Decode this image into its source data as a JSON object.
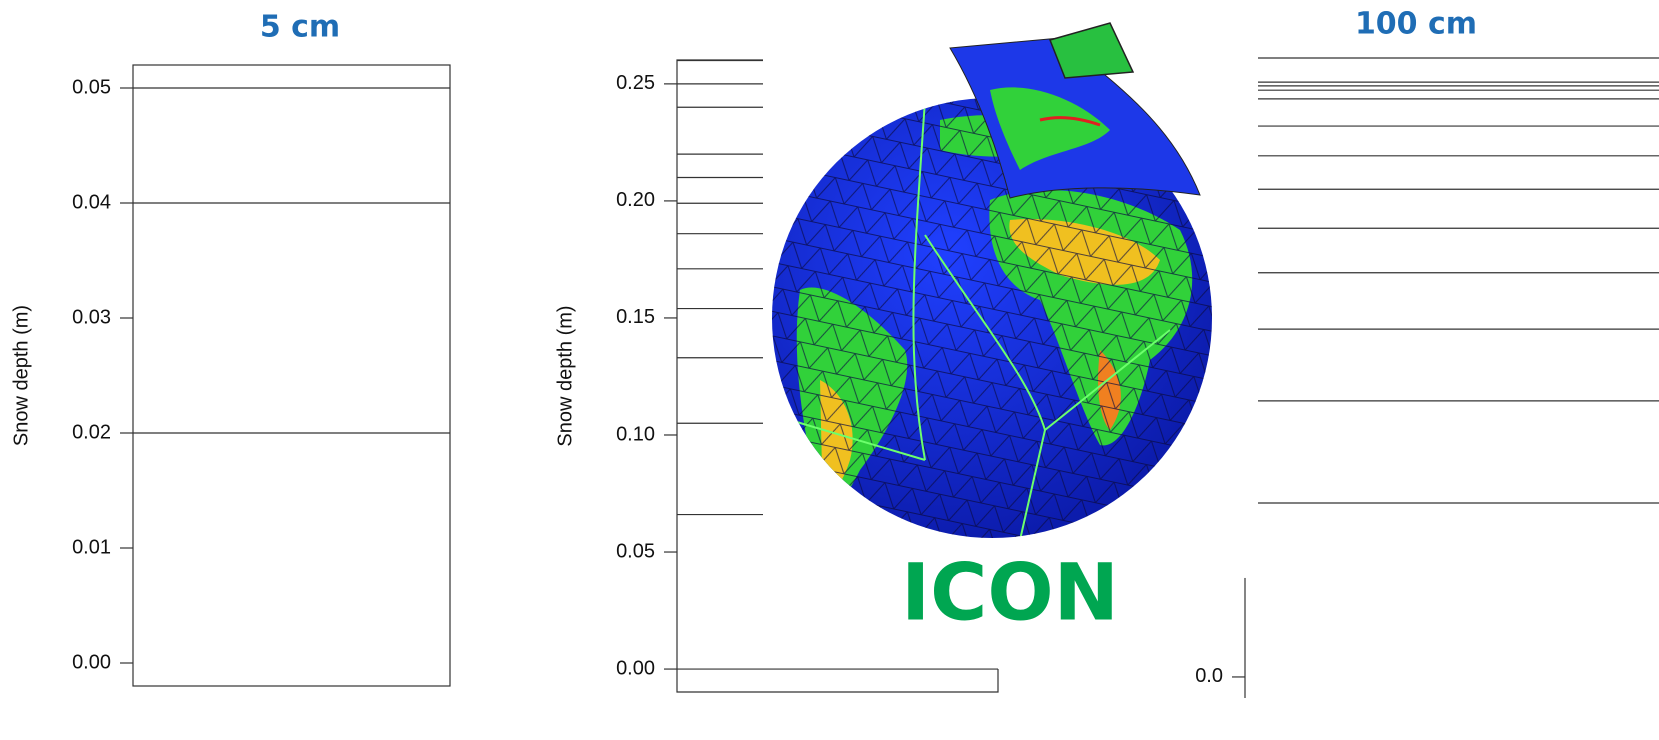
{
  "chart_data": [
    {
      "type": "layers",
      "title": "5 cm",
      "ylabel": "Snow depth (m)",
      "ylim": [
        -0.002,
        0.052
      ],
      "yticks": [
        {
          "value": 0,
          "label": "0.00"
        },
        0.01,
        0.02,
        0.03,
        0.04,
        0.05
      ],
      "values": [
        0.05,
        0.04,
        0.02
      ],
      "color": "#333333"
    },
    {
      "type": "layers",
      "ylabel": "Snow depth (m)",
      "annotation": "ICON",
      "ylim": [
        -0.0098,
        0.2602
      ],
      "yticks": [
        {
          "value": 0,
          "label": "0.00"
        },
        0.05,
        {
          "value": 0.1,
          "label": "0.10"
        },
        0.15,
        {
          "value": 0.2,
          "label": "0.20"
        },
        0.25
      ],
      "values": [
        0,
        0.066,
        0.105,
        0.133,
        0.154,
        0.171,
        0.186,
        0.199,
        0.21,
        0.22,
        0.24,
        0.25,
        0.26
      ],
      "color": "#333333"
    },
    {
      "type": "layers",
      "title": "100 cm",
      "ylim": [
        -0.034,
        1.0
      ],
      "yticks": [
        {
          "value": 0,
          "label": "0.0"
        }
      ],
      "values": [
        1.0,
        0.961,
        0.955,
        0.948,
        0.934,
        0.89,
        0.842,
        0.788,
        0.725,
        0.653,
        0.562,
        0.446,
        0.281
      ],
      "color": "#333333"
    }
  ]
}
